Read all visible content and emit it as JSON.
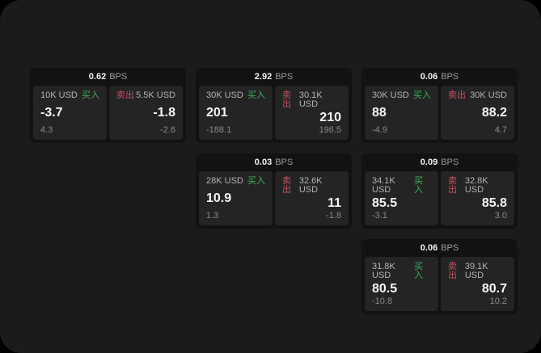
{
  "labels": {
    "bps": "BPS",
    "buy": "买入",
    "sell": "卖出"
  },
  "colors": {
    "page_bg": "#1b1b1b",
    "outer_bg": "#000000",
    "card_bg": "#121212",
    "panel_bg": "#242424",
    "buy_green": "#3cb15a",
    "sell_red": "#c84f62",
    "value_white": "#f5f5f5",
    "label_gray": "#b3b3b3",
    "sub_gray": "#8a8a8a"
  },
  "cards": [
    {
      "bps": "0.62",
      "buy": {
        "amount": "10K USD",
        "value": "-3.7",
        "delta": "4.3"
      },
      "sell": {
        "amount": "5.5K USD",
        "value": "-1.8",
        "delta": "-2.6"
      }
    },
    {
      "bps": "2.92",
      "buy": {
        "amount": "30K USD",
        "value": "201",
        "delta": "-188.1"
      },
      "sell": {
        "amount": "30.1K USD",
        "value": "210",
        "delta": "196.5"
      }
    },
    {
      "bps": "0.06",
      "buy": {
        "amount": "30K USD",
        "value": "88",
        "delta": "-4.9"
      },
      "sell": {
        "amount": "30K USD",
        "value": "88.2",
        "delta": "4.7"
      }
    },
    {
      "bps": "0.03",
      "buy": {
        "amount": "28K USD",
        "value": "10.9",
        "delta": "1.3"
      },
      "sell": {
        "amount": "32.6K USD",
        "value": "11",
        "delta": "-1.8"
      }
    },
    {
      "bps": "0.09",
      "buy": {
        "amount": "34.1K USD",
        "value": "85.5",
        "delta": "-3.1"
      },
      "sell": {
        "amount": "32.8K USD",
        "value": "85.8",
        "delta": "3.0"
      }
    },
    {
      "bps": "0.06",
      "buy": {
        "amount": "31.8K USD",
        "value": "80.5",
        "delta": "-10.8"
      },
      "sell": {
        "amount": "39.1K USD",
        "value": "80.7",
        "delta": "10.2"
      }
    }
  ]
}
